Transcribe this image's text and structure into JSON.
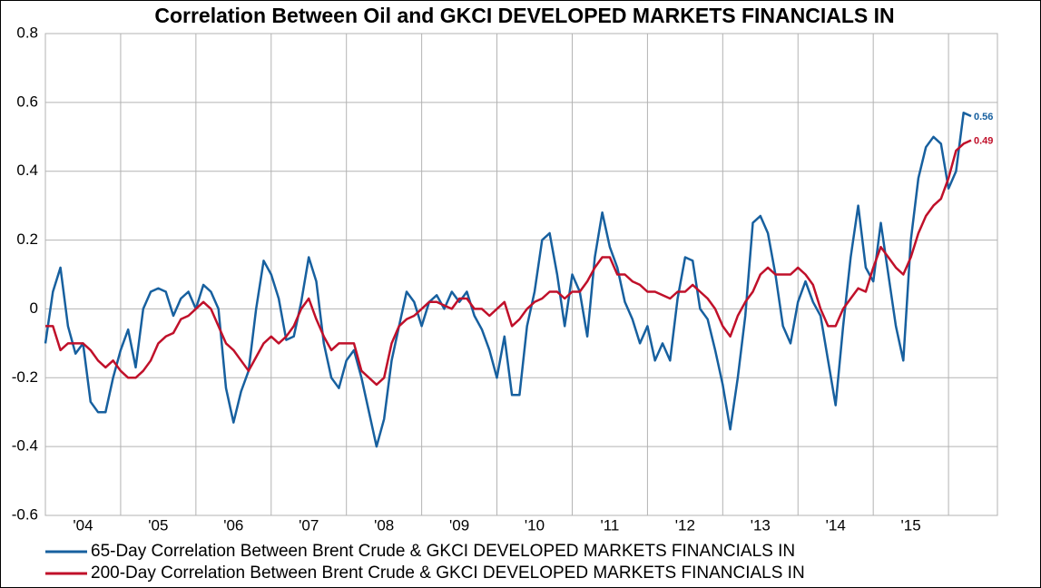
{
  "chart_data": {
    "type": "line",
    "title": "Correlation Between Oil and GKCI DEVELOPED MARKETS FINANCIALS IN",
    "x": [
      2004,
      2004.1,
      2004.2,
      2004.3,
      2004.4,
      2004.5,
      2004.6,
      2004.7,
      2004.8,
      2004.9,
      2005,
      2005.1,
      2005.2,
      2005.3,
      2005.4,
      2005.5,
      2005.6,
      2005.7,
      2005.8,
      2005.9,
      2006,
      2006.1,
      2006.2,
      2006.3,
      2006.4,
      2006.5,
      2006.6,
      2006.7,
      2006.8,
      2006.9,
      2007,
      2007.1,
      2007.2,
      2007.3,
      2007.4,
      2007.5,
      2007.6,
      2007.7,
      2007.8,
      2007.9,
      2008,
      2008.1,
      2008.2,
      2008.3,
      2008.4,
      2008.5,
      2008.6,
      2008.7,
      2008.8,
      2008.9,
      2009,
      2009.1,
      2009.2,
      2009.3,
      2009.4,
      2009.5,
      2009.6,
      2009.7,
      2009.8,
      2009.9,
      2010,
      2010.1,
      2010.2,
      2010.3,
      2010.4,
      2010.5,
      2010.6,
      2010.7,
      2010.8,
      2010.9,
      2011,
      2011.1,
      2011.2,
      2011.3,
      2011.4,
      2011.5,
      2011.6,
      2011.7,
      2011.8,
      2011.9,
      2012,
      2012.1,
      2012.2,
      2012.3,
      2012.4,
      2012.5,
      2012.6,
      2012.7,
      2012.8,
      2012.9,
      2013,
      2013.1,
      2013.2,
      2013.3,
      2013.4,
      2013.5,
      2013.6,
      2013.7,
      2013.8,
      2013.9,
      2014,
      2014.1,
      2014.2,
      2014.3,
      2014.4,
      2014.5,
      2014.6,
      2014.7,
      2014.8,
      2014.9,
      2015,
      2015.1,
      2015.2,
      2015.3,
      2015.4,
      2015.5,
      2015.6,
      2015.7,
      2015.8,
      2015.9,
      2016,
      2016.1,
      2016.2,
      2016.3
    ],
    "series": [
      {
        "name": "65-Day Correlation Between Brent Crude & GKCI DEVELOPED MARKETS FINANCIALS IN",
        "color": "#17609f",
        "values": [
          -0.1,
          0.05,
          0.12,
          -0.05,
          -0.13,
          -0.1,
          -0.27,
          -0.3,
          -0.3,
          -0.2,
          -0.12,
          -0.06,
          -0.17,
          0,
          0.05,
          0.06,
          0.05,
          -0.02,
          0.03,
          0.05,
          0,
          0.07,
          0.05,
          0,
          -0.23,
          -0.33,
          -0.24,
          -0.18,
          0,
          0.14,
          0.1,
          0.03,
          -0.09,
          -0.08,
          0.02,
          0.15,
          0.08,
          -0.1,
          -0.2,
          -0.23,
          -0.15,
          -0.12,
          -0.2,
          -0.3,
          -0.4,
          -0.32,
          -0.15,
          -0.05,
          0.05,
          0.02,
          -0.05,
          0.02,
          0.04,
          0,
          0.05,
          0.02,
          0.05,
          -0.02,
          -0.06,
          -0.12,
          -0.2,
          -0.08,
          -0.25,
          -0.25,
          -0.05,
          0.05,
          0.2,
          0.22,
          0.1,
          -0.05,
          0.1,
          0.05,
          -0.08,
          0.15,
          0.28,
          0.18,
          0.12,
          0.02,
          -0.03,
          -0.1,
          -0.05,
          -0.15,
          -0.1,
          -0.15,
          0.03,
          0.15,
          0.14,
          0,
          -0.03,
          -0.12,
          -0.22,
          -0.35,
          -0.2,
          -0.02,
          0.25,
          0.27,
          0.22,
          0.1,
          -0.05,
          -0.1,
          0.02,
          0.08,
          0.02,
          -0.02,
          -0.15,
          -0.28,
          -0.05,
          0.15,
          0.3,
          0.12,
          0.08,
          0.25,
          0.1,
          -0.05,
          -0.15,
          0.2,
          0.38,
          0.47,
          0.5,
          0.48,
          0.35,
          0.4,
          0.57,
          0.56
        ]
      },
      {
        "name": "200-Day Correlation Between Brent Crude & GKCI DEVELOPED MARKETS FINANCIALS IN",
        "color": "#c0102a",
        "values": [
          -0.05,
          -0.05,
          -0.12,
          -0.1,
          -0.1,
          -0.1,
          -0.12,
          -0.15,
          -0.17,
          -0.15,
          -0.18,
          -0.2,
          -0.2,
          -0.18,
          -0.15,
          -0.1,
          -0.08,
          -0.07,
          -0.03,
          -0.02,
          0,
          0.02,
          0,
          -0.05,
          -0.1,
          -0.12,
          -0.15,
          -0.18,
          -0.14,
          -0.1,
          -0.08,
          -0.1,
          -0.08,
          -0.05,
          0,
          0.03,
          -0.03,
          -0.08,
          -0.12,
          -0.1,
          -0.1,
          -0.1,
          -0.18,
          -0.2,
          -0.22,
          -0.2,
          -0.1,
          -0.05,
          -0.03,
          -0.02,
          0,
          0.02,
          0.02,
          0.01,
          0,
          0.03,
          0.03,
          0,
          0,
          -0.02,
          0,
          0.02,
          -0.05,
          -0.03,
          0,
          0.02,
          0.03,
          0.05,
          0.05,
          0.03,
          0.05,
          0.05,
          0.08,
          0.12,
          0.15,
          0.15,
          0.1,
          0.1,
          0.08,
          0.07,
          0.05,
          0.05,
          0.04,
          0.03,
          0.05,
          0.05,
          0.07,
          0.05,
          0.03,
          0,
          -0.05,
          -0.08,
          -0.02,
          0.02,
          0.05,
          0.1,
          0.12,
          0.1,
          0.1,
          0.1,
          0.12,
          0.1,
          0.07,
          0,
          -0.05,
          -0.05,
          0,
          0.03,
          0.06,
          0.05,
          0.12,
          0.18,
          0.15,
          0.12,
          0.1,
          0.15,
          0.22,
          0.27,
          0.3,
          0.32,
          0.38,
          0.46,
          0.48,
          0.49
        ]
      }
    ],
    "xlim": [
      2004,
      2016.65
    ],
    "xticks": [
      {
        "value": 2004.5,
        "label": "'04"
      },
      {
        "value": 2005.5,
        "label": "'05"
      },
      {
        "value": 2006.5,
        "label": "'06"
      },
      {
        "value": 2007.5,
        "label": "'07"
      },
      {
        "value": 2008.5,
        "label": "'08"
      },
      {
        "value": 2009.5,
        "label": "'09"
      },
      {
        "value": 2010.5,
        "label": "'10"
      },
      {
        "value": 2011.5,
        "label": "'11"
      },
      {
        "value": 2012.5,
        "label": "'12"
      },
      {
        "value": 2013.5,
        "label": "'13"
      },
      {
        "value": 2014.5,
        "label": "'14"
      },
      {
        "value": 2015.5,
        "label": "'15"
      }
    ],
    "xgrid": [
      2005,
      2006,
      2007,
      2008,
      2009,
      2010,
      2011,
      2012,
      2013,
      2014,
      2015,
      2016
    ],
    "ylim": [
      -0.6,
      0.8
    ],
    "yticks": [
      -0.6,
      -0.4,
      -0.2,
      0,
      0.2,
      0.4,
      0.6,
      0.8
    ],
    "grid": true,
    "legend": "bottom"
  }
}
